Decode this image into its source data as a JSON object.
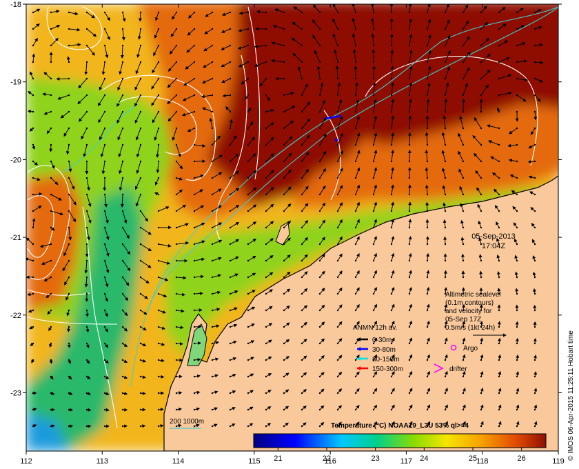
{
  "colors": {
    "land": "#f9c89b",
    "coast": "#000000",
    "contour_white": "#ffffff",
    "isobath": "#3fd0cf",
    "hot": "#8e1102",
    "warm": "#e46b09",
    "mid": "#f2b51d",
    "cool": "#8fd31c",
    "cold": "#2cb86a"
  },
  "axes": {
    "lon_ticks": [
      "112",
      "113",
      "114",
      "115",
      "116",
      "117",
      "118",
      "119"
    ],
    "lat_ticks": [
      "-18",
      "-19",
      "-20",
      "-21",
      "-22",
      "-23"
    ],
    "lon_range": [
      112,
      119
    ],
    "lat_range": [
      -23.75,
      -18
    ]
  },
  "timestamp": {
    "date": "05-Sep-2013",
    "time": "17:04Z"
  },
  "altimetry": {
    "line1": "Altimetric sealevel",
    "line2": "(0.1m contours)",
    "line3": "and velocity for",
    "line4": "05-Sep 17Z",
    "line5": "0.5m/s (1kt 24h)"
  },
  "legend": {
    "title": "ANMN 12h av.",
    "items": [
      {
        "label": "0-30m",
        "color": "#000000"
      },
      {
        "label": "30-80m",
        "color": "#0000ff"
      },
      {
        "label": "80-150m",
        "color": "#00e5e5"
      },
      {
        "label": "150-300m",
        "color": "#ff0000"
      }
    ],
    "argo_label": "Argo",
    "drifter_label": "drifter",
    "argo_color": "#ff00ff",
    "drifter_color": "#ff00ff"
  },
  "isobath_legend": "200  1000m",
  "colorbar": {
    "title": "Temperature (°C) NOAA19_L3U 53% ql>=4",
    "min": 20.5,
    "max": 26.5,
    "ticks": [
      "21",
      "22",
      "23",
      "24",
      "25",
      "26"
    ]
  },
  "credit": "© IMOS 06-Apr-2015 11:25:11 Hobart time"
}
